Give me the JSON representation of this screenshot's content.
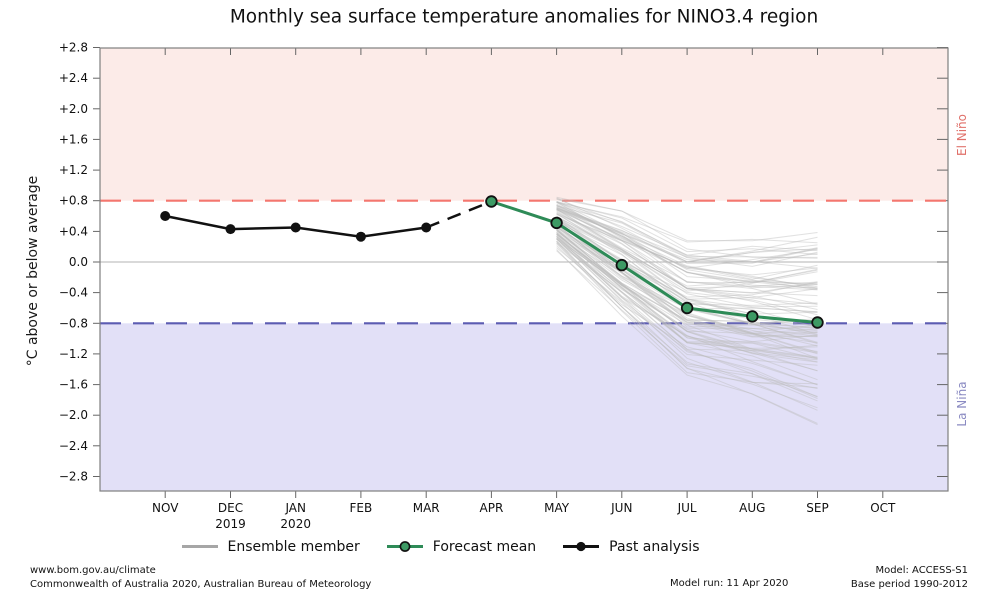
{
  "title": "Monthly sea surface temperature anomalies for NINO3.4 region",
  "y_axis_label": "°C above or below average",
  "region_labels": {
    "el_nino": "El Niño",
    "la_nina": "La Niña"
  },
  "legend": {
    "items": [
      {
        "label": "Ensemble member"
      },
      {
        "label": "Forecast mean"
      },
      {
        "label": "Past analysis"
      }
    ]
  },
  "footer": {
    "website": "www.bom.gov.au/climate",
    "copyright": "Commonwealth of Australia 2020, Australian Bureau of Meteorology",
    "model_run": "Model run: 11 Apr 2020",
    "model": "Model: ACCESS-S1",
    "base_period": "Base period 1990-2012"
  },
  "colors": {
    "el_nino_band": "#fcebe8",
    "la_nina_band": "#e2e0f7",
    "el_nino_line": "#f4766e",
    "la_nina_line": "#5c5cb2",
    "el_nino_text": "#e0706a",
    "la_nina_text": "#8a8ac2",
    "forecast": "#2e8b57",
    "forecast_marker": "#3d9a64",
    "past": "#111111",
    "ensemble": "#bdbdbd",
    "legend_ensemble": "#a6a6a6",
    "zero_line": "#b3b3b3",
    "border": "#7f7f7f",
    "tick": "#666666"
  },
  "chart_data": {
    "type": "line",
    "x_categories": [
      "NOV",
      "DEC",
      "JAN",
      "FEB",
      "MAR",
      "APR",
      "MAY",
      "JUN",
      "JUL",
      "AUG",
      "SEP",
      "OCT"
    ],
    "x_year_labels": [
      {
        "month": "DEC",
        "year": "2019"
      },
      {
        "month": "JAN",
        "year": "2020"
      }
    ],
    "ytick_values": [
      2.8,
      2.4,
      2.0,
      1.6,
      1.2,
      0.8,
      0.4,
      0.0,
      -0.4,
      -0.8,
      -1.2,
      -1.6,
      -2.0,
      -2.4,
      -2.8
    ],
    "ytick_labels": [
      "+2.8",
      "+2.4",
      "+2.0",
      "+1.6",
      "+1.2",
      "+0.8",
      "+0.4",
      "0.0",
      "−0.4",
      "−0.8",
      "−1.2",
      "−1.6",
      "−2.0",
      "−2.4",
      "−2.8"
    ],
    "ylim": [
      -3.0,
      2.8
    ],
    "thresholds": {
      "el_nino": 0.8,
      "la_nina": -0.8
    },
    "series": [
      {
        "name": "Past analysis",
        "style": "solid-markers",
        "months": [
          "NOV",
          "DEC",
          "JAN",
          "FEB",
          "MAR"
        ],
        "values": [
          0.6,
          0.43,
          0.45,
          0.33,
          0.45
        ]
      },
      {
        "name": "Analysis to forecast transition",
        "style": "dashed",
        "months": [
          "MAR",
          "APR"
        ],
        "values": [
          0.45,
          0.79
        ]
      },
      {
        "name": "Forecast mean",
        "style": "solid-markers",
        "months": [
          "APR",
          "MAY",
          "JUN",
          "JUL",
          "AUG",
          "SEP"
        ],
        "values": [
          0.79,
          0.51,
          -0.04,
          -0.6,
          -0.71,
          -0.79
        ]
      }
    ],
    "ensemble": {
      "name": "Ensemble member",
      "count": 99,
      "seed": 20,
      "months": [
        "MAY",
        "JUN",
        "JUL",
        "AUG",
        "SEP"
      ],
      "mean": [
        0.51,
        -0.04,
        -0.6,
        -0.71,
        -0.79
      ],
      "spread": [
        0.3,
        0.55,
        0.65,
        0.75,
        0.85
      ],
      "drift": 0.25,
      "value_min": -2.52,
      "value_max": 1.15,
      "opacity": 0.45
    }
  }
}
